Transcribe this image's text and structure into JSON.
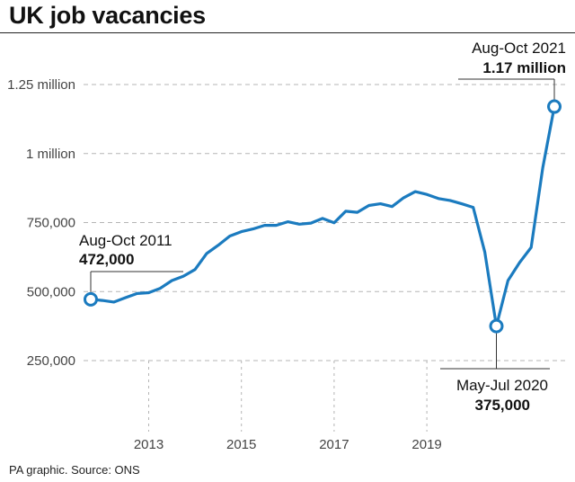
{
  "title": "UK job vacancies",
  "footer": "PA graphic. Source: ONS",
  "colors": {
    "line": "#1b7bbf",
    "grid": "#b5b5b5",
    "text": "#111111"
  },
  "chart_data": {
    "type": "line",
    "title": "UK job vacancies",
    "xlabel": "",
    "ylabel": "",
    "ylim": [
      0,
      1300000
    ],
    "xlim": [
      2011.6,
      2021.9
    ],
    "grid": true,
    "y_ticks": [
      {
        "value": 250000,
        "label": "250,000"
      },
      {
        "value": 500000,
        "label": "500,000"
      },
      {
        "value": 750000,
        "label": "750,000"
      },
      {
        "value": 1000000,
        "label": "1 million"
      },
      {
        "value": 1250000,
        "label": "1.25 million"
      }
    ],
    "x_ticks": [
      {
        "value": 2013,
        "label": "2013"
      },
      {
        "value": 2015,
        "label": "2015"
      },
      {
        "value": 2017,
        "label": "2017"
      },
      {
        "value": 2019,
        "label": "2019"
      }
    ],
    "series": [
      {
        "x": [
          2011.75,
          2012.0,
          2012.25,
          2012.5,
          2012.75,
          2013.0,
          2013.25,
          2013.5,
          2013.75,
          2014.0,
          2014.25,
          2014.5,
          2014.75,
          2015.0,
          2015.25,
          2015.5,
          2015.75,
          2016.0,
          2016.25,
          2016.5,
          2016.75,
          2017.0,
          2017.25,
          2017.5,
          2017.75,
          2018.0,
          2018.25,
          2018.5,
          2018.75,
          2019.0,
          2019.25,
          2019.5,
          2019.75,
          2020.0,
          2020.25,
          2020.5,
          2020.75,
          2021.0,
          2021.25,
          2021.5,
          2021.75
        ],
        "y": [
          472000,
          468000,
          462000,
          478000,
          493000,
          496000,
          512000,
          540000,
          556000,
          580000,
          638000,
          668000,
          701000,
          717000,
          727000,
          740000,
          740000,
          753000,
          744000,
          748000,
          765000,
          749000,
          791000,
          787000,
          812000,
          818000,
          808000,
          840000,
          862000,
          852000,
          837000,
          830000,
          818000,
          805000,
          643000,
          375000,
          540000,
          605000,
          660000,
          948000,
          1170000
        ]
      }
    ],
    "annotations": [
      {
        "x": 2011.75,
        "y": 472000,
        "label": "Aug-Oct 2011",
        "value": "472,000"
      },
      {
        "x": 2020.5,
        "y": 375000,
        "label": "May-Jul 2020",
        "value": "375,000"
      },
      {
        "x": 2021.75,
        "y": 1170000,
        "label": "Aug-Oct 2021",
        "value": "1.17 million"
      }
    ]
  }
}
